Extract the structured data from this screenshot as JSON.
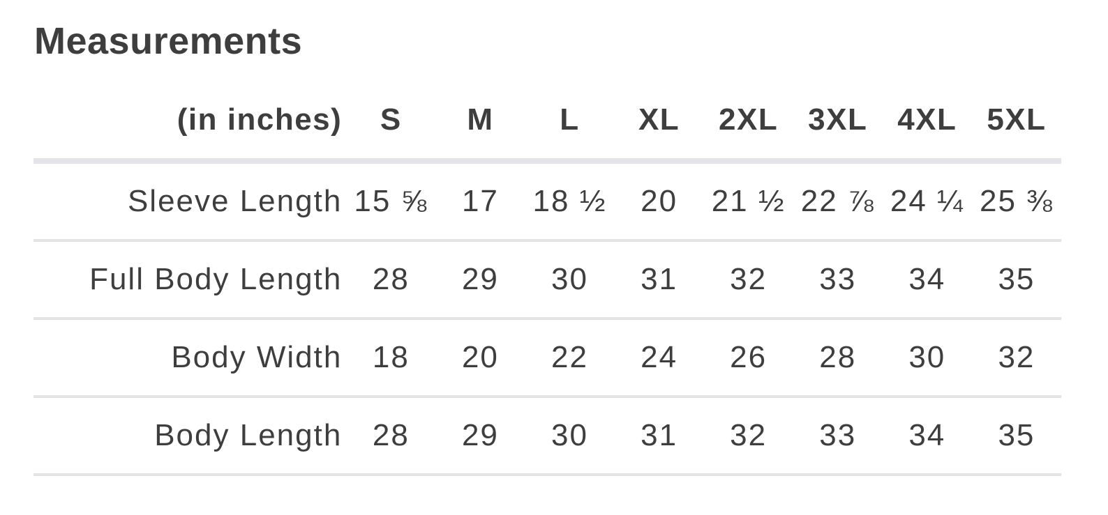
{
  "title": "Measurements",
  "table": {
    "unit_header": "(in inches)",
    "sizes": [
      "S",
      "M",
      "L",
      "XL",
      "2XL",
      "3XL",
      "4XL",
      "5XL"
    ],
    "rows": [
      {
        "label": "Sleeve Length",
        "values": [
          "15 ⅝",
          "17",
          "18 ½",
          "20",
          "21 ½",
          "22 ⅞",
          "24 ¼",
          "25 ⅜"
        ]
      },
      {
        "label": "Full Body Length",
        "values": [
          "28",
          "29",
          "30",
          "31",
          "32",
          "33",
          "34",
          "35"
        ]
      },
      {
        "label": "Body Width",
        "values": [
          "18",
          "20",
          "22",
          "24",
          "26",
          "28",
          "30",
          "32"
        ]
      },
      {
        "label": "Body Length",
        "values": [
          "28",
          "29",
          "30",
          "31",
          "32",
          "33",
          "34",
          "35"
        ]
      }
    ]
  }
}
